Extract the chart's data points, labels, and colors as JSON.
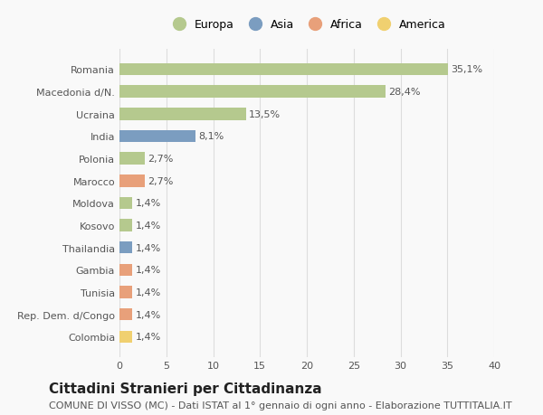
{
  "categories": [
    "Romania",
    "Macedonia d/N.",
    "Ucraina",
    "India",
    "Polonia",
    "Marocco",
    "Moldova",
    "Kosovo",
    "Thailandia",
    "Gambia",
    "Tunisia",
    "Rep. Dem. d/Congo",
    "Colombia"
  ],
  "values": [
    35.1,
    28.4,
    13.5,
    8.1,
    2.7,
    2.7,
    1.4,
    1.4,
    1.4,
    1.4,
    1.4,
    1.4,
    1.4
  ],
  "labels": [
    "35,1%",
    "28,4%",
    "13,5%",
    "8,1%",
    "2,7%",
    "2,7%",
    "1,4%",
    "1,4%",
    "1,4%",
    "1,4%",
    "1,4%",
    "1,4%",
    "1,4%"
  ],
  "colors": [
    "#b5c98e",
    "#b5c98e",
    "#b5c98e",
    "#7b9dc0",
    "#b5c98e",
    "#e8a07a",
    "#b5c98e",
    "#b5c98e",
    "#7b9dc0",
    "#e8a07a",
    "#e8a07a",
    "#e8a07a",
    "#f0d070"
  ],
  "legend_labels": [
    "Europa",
    "Asia",
    "Africa",
    "America"
  ],
  "legend_colors": [
    "#b5c98e",
    "#7b9dc0",
    "#e8a07a",
    "#f0d070"
  ],
  "xlim": [
    0,
    40
  ],
  "xticks": [
    0,
    5,
    10,
    15,
    20,
    25,
    30,
    35,
    40
  ],
  "title": "Cittadini Stranieri per Cittadinanza",
  "subtitle": "COMUNE DI VISSO (MC) - Dati ISTAT al 1° gennaio di ogni anno - Elaborazione TUTTITALIA.IT",
  "bg_color": "#f9f9f9",
  "grid_color": "#dddddd",
  "bar_height": 0.55,
  "title_fontsize": 11,
  "subtitle_fontsize": 8,
  "label_fontsize": 8,
  "tick_fontsize": 8
}
